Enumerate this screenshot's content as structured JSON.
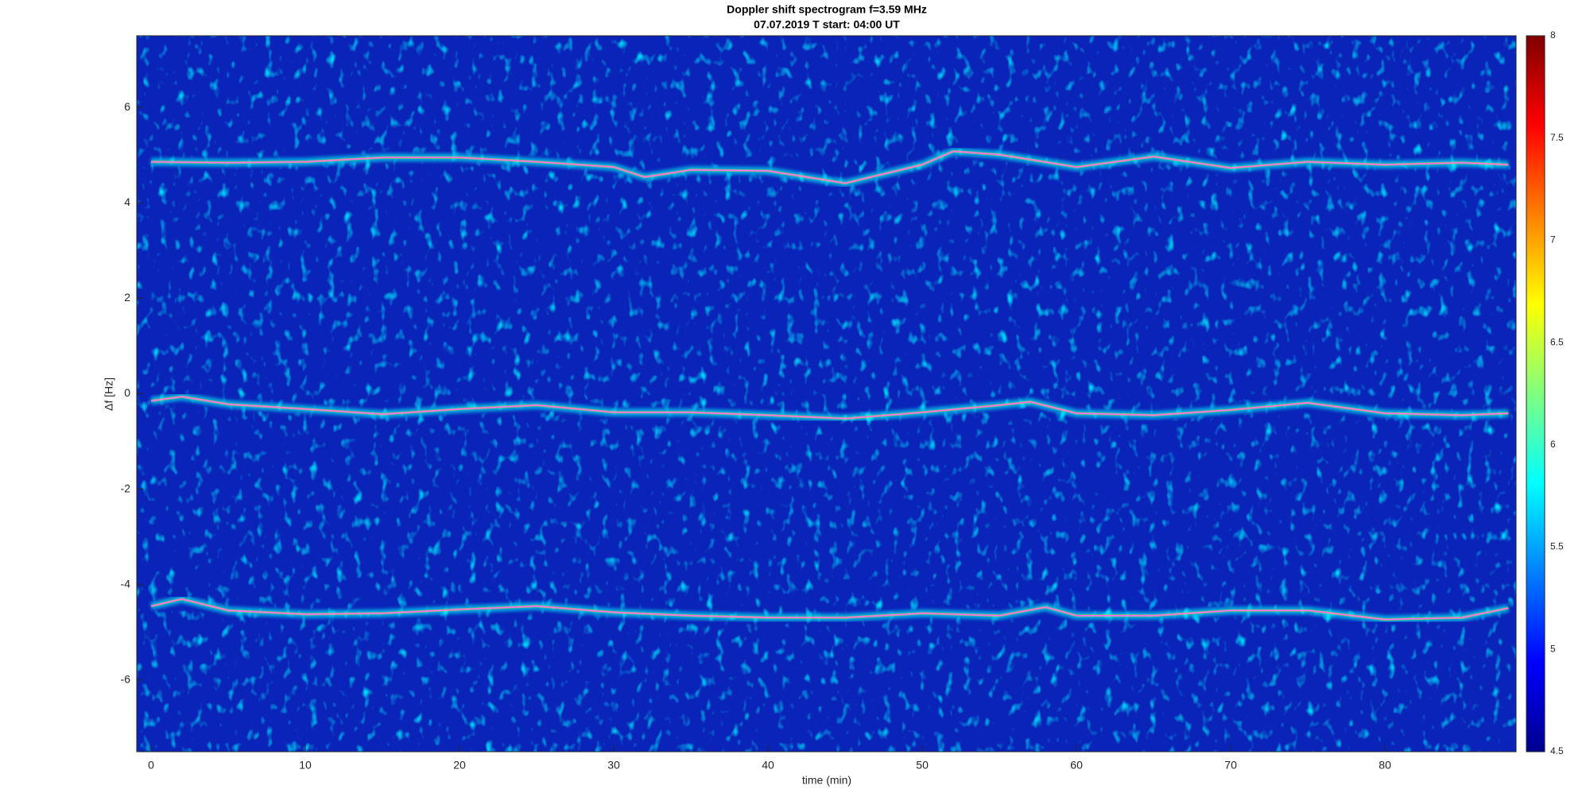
{
  "chart_data": {
    "type": "spectrogram",
    "title": "Doppler shift spectrogram f=3.59 MHz",
    "subtitle": "07.07.2019    T start: 04:00 UT",
    "x_label": "time (min)",
    "y_label": "Δf [Hz]",
    "xlim": [
      -0.93,
      88.5
    ],
    "ylim": [
      -7.5,
      7.5
    ],
    "xticks": [
      0,
      10,
      20,
      30,
      40,
      50,
      60,
      70,
      80
    ],
    "yticks": [
      -6,
      -4,
      -2,
      0,
      2,
      4,
      6
    ],
    "colormap": "jet",
    "clim": [
      4.5,
      8
    ],
    "cticks": [
      4.5,
      5,
      5.5,
      6,
      6.5,
      7,
      7.5,
      8
    ],
    "series": [
      {
        "color": "#ff66ff",
        "x": [
          0,
          5,
          10,
          15,
          20,
          25,
          30,
          32,
          35,
          40,
          45,
          50,
          52,
          55,
          60,
          65,
          70,
          75,
          80,
          85,
          88
        ],
        "values": [
          4.86,
          4.84,
          4.86,
          4.95,
          4.95,
          4.86,
          4.75,
          4.54,
          4.69,
          4.67,
          4.41,
          4.8,
          5.08,
          5.01,
          4.75,
          4.97,
          4.73,
          4.86,
          4.8,
          4.84,
          4.8
        ]
      },
      {
        "color": "#ff66ff",
        "x": [
          0,
          2,
          5,
          10,
          15,
          20,
          25,
          30,
          35,
          40,
          45,
          50,
          55,
          57,
          60,
          65,
          70,
          75,
          80,
          85,
          88
        ],
        "values": [
          -0.15,
          -0.06,
          -0.22,
          -0.32,
          -0.43,
          -0.32,
          -0.24,
          -0.39,
          -0.39,
          -0.45,
          -0.52,
          -0.39,
          -0.24,
          -0.17,
          -0.41,
          -0.45,
          -0.34,
          -0.19,
          -0.41,
          -0.45,
          -0.41
        ]
      },
      {
        "color": "#ff66ff",
        "x": [
          0,
          2,
          5,
          10,
          15,
          20,
          25,
          30,
          35,
          40,
          45,
          50,
          55,
          58,
          60,
          65,
          70,
          75,
          80,
          85,
          88
        ],
        "values": [
          -4.45,
          -4.3,
          -4.54,
          -4.62,
          -4.6,
          -4.52,
          -4.45,
          -4.58,
          -4.65,
          -4.69,
          -4.69,
          -4.6,
          -4.65,
          -4.47,
          -4.65,
          -4.65,
          -4.54,
          -4.54,
          -4.73,
          -4.69,
          -4.49
        ]
      }
    ]
  }
}
